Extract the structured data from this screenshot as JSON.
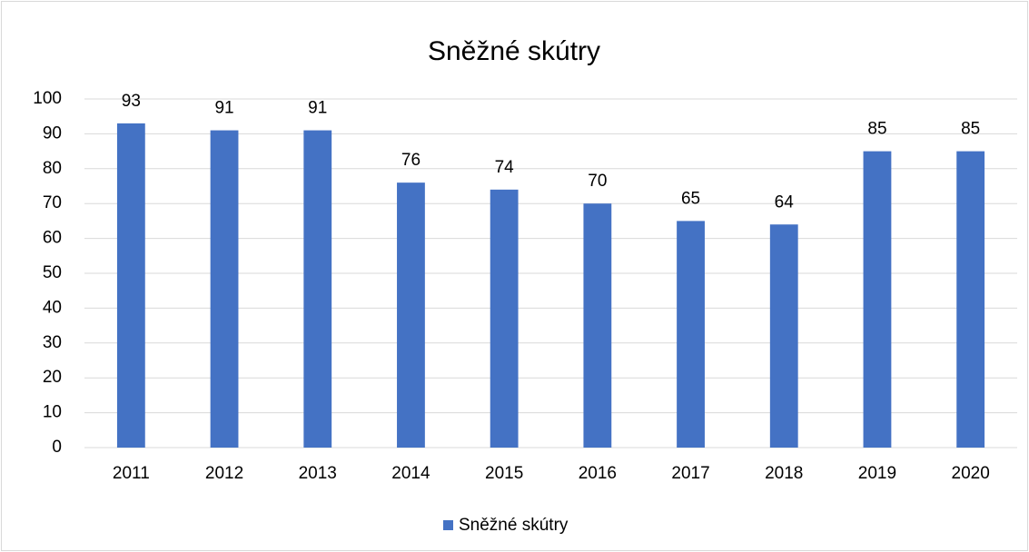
{
  "chart_data": {
    "type": "bar",
    "title": "Sněžné skútry",
    "categories": [
      "2011",
      "2012",
      "2013",
      "2014",
      "2015",
      "2016",
      "2017",
      "2018",
      "2019",
      "2020"
    ],
    "series": [
      {
        "name": "Sněžné skútry",
        "color": "#4472c4",
        "values": [
          93,
          91,
          91,
          76,
          74,
          70,
          65,
          64,
          85,
          85
        ]
      }
    ],
    "ylim": [
      0,
      100
    ],
    "yticks": [
      0,
      10,
      20,
      30,
      40,
      50,
      60,
      70,
      80,
      90,
      100
    ],
    "grid": true,
    "legend": "bottom",
    "data_labels": true
  }
}
